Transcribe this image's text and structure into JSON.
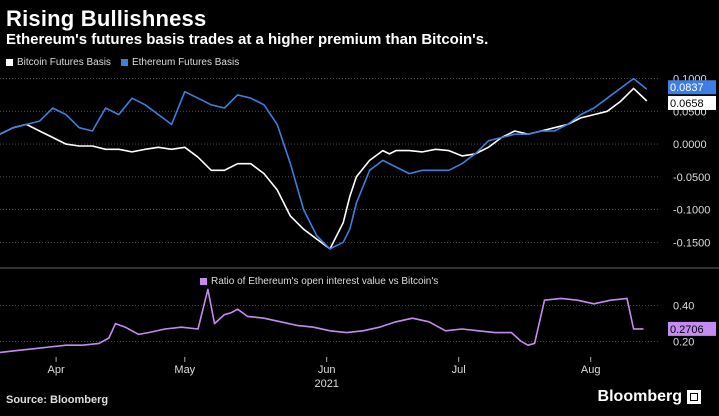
{
  "title": "Rising Bullishness",
  "subtitle": "Ethereum's futures basis trades at a higher premium than Bitcoin's.",
  "source": "Source: Bloomberg",
  "brand": "Bloomberg",
  "colors": {
    "bitcoin": "#ffffff",
    "ethereum": "#3d7ee0",
    "ratio": "#c48cf0",
    "grid": "#555555",
    "background": "#000000"
  },
  "chart_data": [
    {
      "type": "line",
      "legend_placement": "top-left",
      "grid": true,
      "ylim": [
        -0.18,
        0.11
      ],
      "y_ticks": [
        "0.1000",
        "0.0500",
        "0.0000",
        "-0.0500",
        "-0.1000",
        "-0.1500"
      ],
      "y_tick_values": [
        0.1,
        0.05,
        0.0,
        -0.05,
        -0.1,
        -0.15
      ],
      "xlim": [
        0,
        200
      ],
      "series": [
        {
          "name": "Bitcoin Futures Basis",
          "color": "#ffffff",
          "last_label": "0.0658",
          "x": [
            0,
            4,
            8,
            12,
            16,
            20,
            24,
            28,
            32,
            36,
            40,
            44,
            48,
            52,
            56,
            60,
            64,
            68,
            72,
            76,
            80,
            84,
            88,
            92,
            96,
            100,
            104,
            106,
            108,
            112,
            116,
            118,
            120,
            124,
            128,
            132,
            136,
            140,
            144,
            148,
            152,
            156,
            160,
            164,
            168,
            172,
            176,
            180,
            184,
            188,
            192,
            196
          ],
          "y": [
            0.015,
            0.025,
            0.03,
            0.02,
            0.01,
            0.0,
            -0.003,
            -0.003,
            -0.008,
            -0.008,
            -0.012,
            -0.008,
            -0.005,
            -0.008,
            -0.005,
            -0.02,
            -0.04,
            -0.04,
            -0.03,
            -0.03,
            -0.045,
            -0.07,
            -0.11,
            -0.13,
            -0.145,
            -0.16,
            -0.12,
            -0.08,
            -0.05,
            -0.025,
            -0.01,
            -0.015,
            -0.01,
            -0.01,
            -0.012,
            -0.008,
            -0.01,
            -0.018,
            -0.015,
            -0.005,
            0.01,
            0.02,
            0.015,
            0.02,
            0.025,
            0.03,
            0.04,
            0.045,
            0.05,
            0.065,
            0.085,
            0.0658
          ]
        },
        {
          "name": "Ethereum Futures Basis",
          "color": "#3d7ee0",
          "last_label": "0.0837",
          "x": [
            0,
            4,
            8,
            12,
            16,
            20,
            24,
            28,
            32,
            36,
            40,
            44,
            48,
            52,
            56,
            60,
            64,
            68,
            72,
            76,
            80,
            84,
            88,
            92,
            96,
            100,
            104,
            106,
            108,
            112,
            116,
            118,
            120,
            124,
            128,
            132,
            136,
            140,
            144,
            148,
            152,
            156,
            160,
            164,
            168,
            172,
            176,
            180,
            184,
            188,
            192,
            196
          ],
          "y": [
            0.015,
            0.025,
            0.03,
            0.035,
            0.055,
            0.045,
            0.025,
            0.02,
            0.055,
            0.045,
            0.07,
            0.06,
            0.045,
            0.03,
            0.08,
            0.07,
            0.06,
            0.055,
            0.075,
            0.07,
            0.06,
            0.03,
            -0.03,
            -0.1,
            -0.14,
            -0.16,
            -0.15,
            -0.13,
            -0.09,
            -0.04,
            -0.025,
            -0.03,
            -0.035,
            -0.045,
            -0.04,
            -0.04,
            -0.04,
            -0.03,
            -0.015,
            0.005,
            0.01,
            0.015,
            0.015,
            0.02,
            0.02,
            0.03,
            0.045,
            0.055,
            0.07,
            0.085,
            0.1,
            0.0837
          ]
        }
      ]
    },
    {
      "type": "line",
      "grid": true,
      "ylim": [
        0.12,
        0.52
      ],
      "y_ticks": [
        "0.40",
        "0.20"
      ],
      "y_tick_values": [
        0.4,
        0.2
      ],
      "xlim": [
        0,
        200
      ],
      "x_ticks": [
        {
          "label": "Apr",
          "x": 17
        },
        {
          "label": "May",
          "x": 56
        },
        {
          "label": "Jun",
          "x": 99
        },
        {
          "label": "Jul",
          "x": 139
        },
        {
          "label": "Aug",
          "x": 179
        }
      ],
      "x_year_label": "2021",
      "series": [
        {
          "name": "Ratio of Ethereum's open interest value vs Bitcoin's",
          "color": "#c48cf0",
          "last_label": "0.2706",
          "x": [
            0,
            5,
            10,
            15,
            20,
            25,
            30,
            33,
            35,
            38,
            40,
            42,
            45,
            50,
            55,
            60,
            63,
            65,
            68,
            70,
            72,
            75,
            80,
            85,
            90,
            95,
            100,
            105,
            110,
            115,
            120,
            125,
            130,
            135,
            140,
            145,
            150,
            155,
            158,
            160,
            162,
            165,
            170,
            175,
            180,
            185,
            190,
            192,
            195
          ],
          "y": [
            0.14,
            0.15,
            0.16,
            0.17,
            0.18,
            0.18,
            0.19,
            0.22,
            0.3,
            0.28,
            0.26,
            0.24,
            0.25,
            0.27,
            0.28,
            0.27,
            0.49,
            0.3,
            0.35,
            0.36,
            0.38,
            0.34,
            0.33,
            0.31,
            0.29,
            0.28,
            0.26,
            0.25,
            0.26,
            0.28,
            0.31,
            0.33,
            0.31,
            0.26,
            0.27,
            0.26,
            0.25,
            0.25,
            0.2,
            0.18,
            0.19,
            0.43,
            0.44,
            0.43,
            0.41,
            0.43,
            0.44,
            0.27,
            0.2706
          ]
        }
      ]
    }
  ]
}
